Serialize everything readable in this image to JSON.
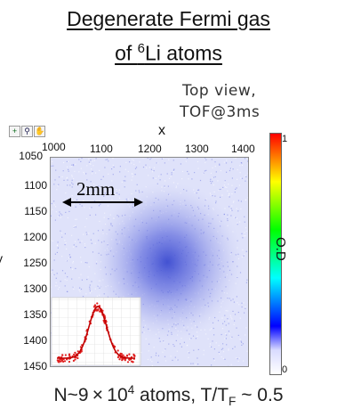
{
  "title": {
    "line1": "Degenerate Fermi gas",
    "line2_prefix": "of ",
    "line2_sup": "6",
    "line2_suffix": "Li atoms"
  },
  "view_note": {
    "line1": "Top view,",
    "line2": "TOF@3ms"
  },
  "image": {
    "x_axis_label": "x",
    "y_axis_label": "y",
    "x_ticks": [
      "1000",
      "1100",
      "1200",
      "1300",
      "1400"
    ],
    "y_ticks": [
      "1050",
      "1100",
      "1150",
      "1200",
      "1250",
      "1300",
      "1350",
      "1400",
      "1450"
    ],
    "scale_bar_label": "2mm",
    "toolbar_icons": [
      "crosshair-icon",
      "zoom-icon",
      "hand-icon"
    ]
  },
  "colorbar": {
    "label": "O.D",
    "max": "1",
    "min": "0",
    "colors": [
      "#ff0000",
      "#ff8000",
      "#ffff00",
      "#80ff00",
      "#00ff00",
      "#00ff80",
      "#00ffff",
      "#0080ff",
      "#0000ff",
      "#d9dbff",
      "#ffffff"
    ]
  },
  "footer": {
    "prefix": "N~9 × 10",
    "exp": "4",
    "middle": " atoms, T/T",
    "sub": "F",
    "suffix": " ~ 0.5"
  }
}
